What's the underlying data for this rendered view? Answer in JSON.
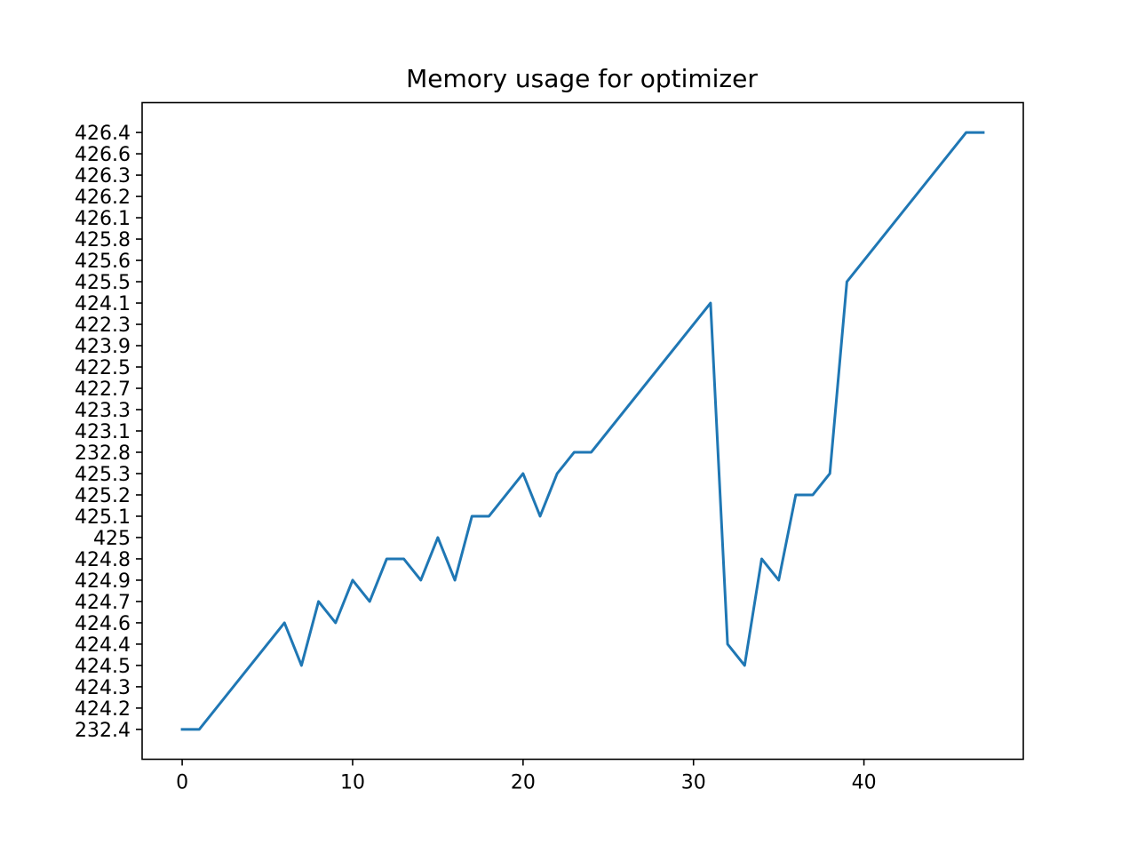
{
  "chart_data": {
    "type": "line",
    "title": "Memory usage for optimizer",
    "xlabel": "",
    "ylabel": "",
    "grid": false,
    "xlim": [
      -2.35,
      49.35
    ],
    "x_ticks": [
      0,
      10,
      20,
      30,
      40
    ],
    "y_axis": "categorical",
    "y_categories": [
      "232.4",
      "424.2",
      "424.3",
      "424.5",
      "424.4",
      "424.6",
      "424.7",
      "424.9",
      "424.8",
      "425",
      "425.1",
      "425.2",
      "425.3",
      "232.8",
      "423.1",
      "423.3",
      "422.7",
      "422.5",
      "423.9",
      "422.3",
      "424.1",
      "425.5",
      "425.6",
      "425.8",
      "426.1",
      "426.2",
      "426.3",
      "426.6",
      "426.4"
    ],
    "series": [
      {
        "color": "#1f77b4",
        "x": [
          0,
          1,
          6,
          7,
          8,
          9,
          10,
          11,
          12,
          13,
          14,
          15,
          16,
          17,
          18,
          20,
          21,
          22,
          23,
          24,
          31,
          32,
          33,
          34,
          35,
          36,
          37,
          38,
          39,
          46,
          47
        ],
        "values": [
          "232.4",
          "232.4",
          "424.6",
          "424.5",
          "424.7",
          "424.6",
          "424.9",
          "424.7",
          "424.8",
          "424.8",
          "424.9",
          "425",
          "424.9",
          "425.1",
          "425.1",
          "425.3",
          "425.1",
          "425.3",
          "232.8",
          "232.8",
          "424.1",
          "424.4",
          "424.5",
          "424.8",
          "424.9",
          "425.2",
          "425.2",
          "425.3",
          "425.5",
          "426.4",
          "426.4"
        ]
      }
    ]
  }
}
